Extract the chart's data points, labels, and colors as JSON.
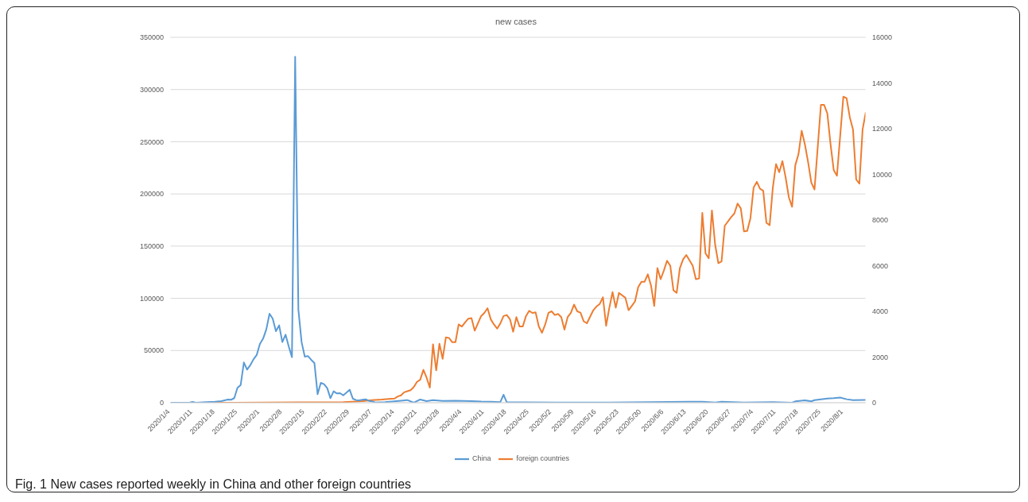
{
  "chart_data": {
    "type": "line",
    "title": "new cases",
    "annotations": [
      "Fig. 1 New cases reported weekly in China and other foreign countries"
    ],
    "xlim": [
      "2020-01-04",
      "2020-08-08"
    ],
    "xticks": [
      {
        "value": "2020-01-04",
        "label": "2020/1/4"
      },
      {
        "value": "2020-01-11",
        "label": "2020/1/11"
      },
      {
        "value": "2020-01-18",
        "label": "2020/1/18"
      },
      {
        "value": "2020-01-25",
        "label": "2020/1/25"
      },
      {
        "value": "2020-02-01",
        "label": "2020/2/1"
      },
      {
        "value": "2020-02-08",
        "label": "2020/2/8"
      },
      {
        "value": "2020-02-15",
        "label": "2020/2/15"
      },
      {
        "value": "2020-02-22",
        "label": "2020/2/22"
      },
      {
        "value": "2020-02-29",
        "label": "2020/2/29"
      },
      {
        "value": "2020-03-07",
        "label": "2020/3/7"
      },
      {
        "value": "2020-03-14",
        "label": "2020/3/14"
      },
      {
        "value": "2020-03-21",
        "label": "2020/3/21"
      },
      {
        "value": "2020-03-28",
        "label": "2020/3/28"
      },
      {
        "value": "2020-04-04",
        "label": "2020/4/4"
      },
      {
        "value": "2020-04-11",
        "label": "2020/4/11"
      },
      {
        "value": "2020-04-18",
        "label": "2020/4/18"
      },
      {
        "value": "2020-04-25",
        "label": "2020/4/25"
      },
      {
        "value": "2020-05-02",
        "label": "2020/5/2"
      },
      {
        "value": "2020-05-09",
        "label": "2020/5/9"
      },
      {
        "value": "2020-05-16",
        "label": "2020/5/16"
      },
      {
        "value": "2020-05-23",
        "label": "2020/5/23"
      },
      {
        "value": "2020-05-30",
        "label": "2020/5/30"
      },
      {
        "value": "2020-06-06",
        "label": "2020/6/6"
      },
      {
        "value": "2020-06-13",
        "label": "2020/6/13"
      },
      {
        "value": "2020-06-20",
        "label": "2020/6/20"
      },
      {
        "value": "2020-06-27",
        "label": "2020/6/27"
      },
      {
        "value": "2020-07-04",
        "label": "2020/7/4"
      },
      {
        "value": "2020-07-11",
        "label": "2020/7/11"
      },
      {
        "value": "2020-07-18",
        "label": "2020/7/18"
      },
      {
        "value": "2020-07-25",
        "label": "2020/7/25"
      },
      {
        "value": "2020-08-01",
        "label": "2020/8/1"
      }
    ],
    "ylim": [
      0,
      350000
    ],
    "yticks": [
      0,
      50000,
      100000,
      150000,
      200000,
      250000,
      300000,
      350000
    ],
    "y2lim": [
      0,
      16000
    ],
    "y2ticks": [
      0,
      2000,
      4000,
      6000,
      8000,
      10000,
      12000,
      14000,
      16000
    ],
    "grid": "y",
    "legend": "bottom",
    "marker": "none",
    "line_style": "solid",
    "series": [
      {
        "name": "foreign countries",
        "color": "#ed7d31",
        "x": [
          "2020-01-04",
          "2020-01-24",
          "2020-02-13",
          "2020-02-27",
          "2020-03-02",
          "2020-03-04",
          "2020-03-07",
          "2020-03-10",
          "2020-03-13",
          "2020-03-14",
          "2020-03-15",
          "2020-03-16",
          "2020-03-17",
          "2020-03-18",
          "2020-03-19",
          "2020-03-20",
          "2020-03-21",
          "2020-03-22",
          "2020-03-23",
          "2020-03-24",
          "2020-03-25",
          "2020-03-26",
          "2020-03-27",
          "2020-03-28",
          "2020-03-29",
          "2020-03-30",
          "2020-03-31",
          "2020-04-01",
          "2020-04-02",
          "2020-04-03",
          "2020-04-04",
          "2020-04-05",
          "2020-04-06",
          "2020-04-07",
          "2020-04-08",
          "2020-04-09",
          "2020-04-10",
          "2020-04-11",
          "2020-04-12",
          "2020-04-13",
          "2020-04-14",
          "2020-04-15",
          "2020-04-16",
          "2020-04-17",
          "2020-04-18",
          "2020-04-19",
          "2020-04-20",
          "2020-04-21",
          "2020-04-22",
          "2020-04-23",
          "2020-04-24",
          "2020-04-25",
          "2020-04-26",
          "2020-04-27",
          "2020-04-28",
          "2020-04-29",
          "2020-04-30",
          "2020-05-01",
          "2020-05-02",
          "2020-05-03",
          "2020-05-04",
          "2020-05-05",
          "2020-05-06",
          "2020-05-07",
          "2020-05-08",
          "2020-05-09",
          "2020-05-10",
          "2020-05-11",
          "2020-05-12",
          "2020-05-13",
          "2020-05-15",
          "2020-05-16",
          "2020-05-17",
          "2020-05-18",
          "2020-05-19",
          "2020-05-20",
          "2020-05-21",
          "2020-05-22",
          "2020-05-23",
          "2020-05-25",
          "2020-05-26",
          "2020-05-27",
          "2020-05-28",
          "2020-05-29",
          "2020-05-30",
          "2020-05-31",
          "2020-06-01",
          "2020-06-02",
          "2020-06-03",
          "2020-06-04",
          "2020-06-05",
          "2020-06-06",
          "2020-06-07",
          "2020-06-08",
          "2020-06-09",
          "2020-06-10",
          "2020-06-11",
          "2020-06-12",
          "2020-06-13",
          "2020-06-15",
          "2020-06-16",
          "2020-06-17",
          "2020-06-18",
          "2020-06-19",
          "2020-06-20",
          "2020-06-21",
          "2020-06-22",
          "2020-06-23",
          "2020-06-24",
          "2020-06-25",
          "2020-06-27",
          "2020-06-28",
          "2020-06-29",
          "2020-06-30",
          "2020-07-01",
          "2020-07-02",
          "2020-07-03",
          "2020-07-04",
          "2020-07-05",
          "2020-07-06",
          "2020-07-07",
          "2020-07-08",
          "2020-07-09",
          "2020-07-10",
          "2020-07-11",
          "2020-07-12",
          "2020-07-13",
          "2020-07-14",
          "2020-07-15",
          "2020-07-16",
          "2020-07-17",
          "2020-07-18",
          "2020-07-19",
          "2020-07-20",
          "2020-07-21",
          "2020-07-22",
          "2020-07-23",
          "2020-07-25",
          "2020-07-26",
          "2020-07-27",
          "2020-07-28",
          "2020-07-29",
          "2020-07-30",
          "2020-08-01",
          "2020-08-02",
          "2020-08-03",
          "2020-08-04",
          "2020-08-05",
          "2020-08-06",
          "2020-08-07",
          "2020-08-08"
        ],
        "values": [
          0,
          0,
          300,
          500,
          1200,
          1500,
          2500,
          3000,
          3800,
          4000,
          6000,
          7000,
          10000,
          11000,
          12000,
          15000,
          20000,
          22000,
          31500,
          24000,
          14500,
          56000,
          31000,
          56500,
          42000,
          62500,
          62000,
          58000,
          58000,
          75000,
          73000,
          77000,
          80500,
          81000,
          69000,
          76000,
          83000,
          86000,
          90500,
          80000,
          75000,
          71000,
          76000,
          83000,
          84000,
          80000,
          68000,
          82000,
          73000,
          73000,
          83000,
          88000,
          86000,
          86500,
          73000,
          67000,
          75000,
          86000,
          87500,
          84000,
          85000,
          82000,
          70000,
          82000,
          86000,
          94000,
          87500,
          86300,
          78000,
          76100,
          88600,
          92200,
          94600,
          101000,
          73700,
          91000,
          106000,
          91000,
          105200,
          100500,
          88600,
          92700,
          97000,
          110700,
          115900,
          115900,
          123000,
          112300,
          92700,
          128900,
          118300,
          126600,
          136000,
          131300,
          107600,
          105200,
          128900,
          137200,
          141500,
          131300,
          118300,
          119000,
          181800,
          143000,
          138400,
          184200,
          151400,
          133700,
          135300,
          169500,
          177800,
          181300,
          190800,
          186100,
          164100,
          164600,
          176600,
          206100,
          211600,
          205000,
          203100,
          172300,
          170000,
          206100,
          228600,
          220800,
          231400,
          215600,
          196700,
          187700,
          227400,
          238100,
          260500,
          247500,
          230500,
          210900,
          204300,
          285300,
          285300,
          277100,
          247500,
          222700,
          217500,
          293200,
          291700,
          273600,
          261800,
          213800,
          209800,
          261800,
          278300
        ]
      },
      {
        "name": "China",
        "color": "#5b9bd5",
        "axis": "y2",
        "x": [
          "2020-01-04",
          "2020-01-10",
          "2020-01-11",
          "2020-01-12",
          "2020-01-18",
          "2020-01-20",
          "2020-01-22",
          "2020-01-23",
          "2020-01-24",
          "2020-01-25",
          "2020-01-26",
          "2020-01-27",
          "2020-01-28",
          "2020-01-29",
          "2020-01-30",
          "2020-01-31",
          "2020-02-01",
          "2020-02-02",
          "2020-02-03",
          "2020-02-04",
          "2020-02-05",
          "2020-02-06",
          "2020-02-07",
          "2020-02-08",
          "2020-02-09",
          "2020-02-10",
          "2020-02-11",
          "2020-02-12",
          "2020-02-13",
          "2020-02-14",
          "2020-02-15",
          "2020-02-16",
          "2020-02-17",
          "2020-02-18",
          "2020-02-19",
          "2020-02-20",
          "2020-02-21",
          "2020-02-22",
          "2020-02-23",
          "2020-02-24",
          "2020-02-25",
          "2020-02-26",
          "2020-02-27",
          "2020-02-28",
          "2020-02-29",
          "2020-03-01",
          "2020-03-02",
          "2020-03-03",
          "2020-03-04",
          "2020-03-05",
          "2020-03-06",
          "2020-03-07",
          "2020-03-08",
          "2020-03-11",
          "2020-03-18",
          "2020-03-20",
          "2020-03-22",
          "2020-03-24",
          "2020-03-26",
          "2020-03-29",
          "2020-04-02",
          "2020-04-07",
          "2020-04-10",
          "2020-04-13",
          "2020-04-16",
          "2020-04-17",
          "2020-04-18",
          "2020-04-23",
          "2020-05-03",
          "2020-05-20",
          "2020-06-14",
          "2020-06-18",
          "2020-06-22",
          "2020-06-24",
          "2020-07-01",
          "2020-07-10",
          "2020-07-16",
          "2020-07-17",
          "2020-07-20",
          "2020-07-22",
          "2020-07-23",
          "2020-07-27",
          "2020-07-29",
          "2020-07-31",
          "2020-08-02",
          "2020-08-04",
          "2020-08-08"
        ],
        "values": [
          0,
          0,
          35,
          0,
          45,
          70,
          140,
          130,
          200,
          650,
          777,
          1763,
          1450,
          1647,
          1900,
          2088,
          2575,
          2807,
          3213,
          3898,
          3677,
          3132,
          3387,
          2656,
          2981,
          2459,
          1995,
          15152,
          4083,
          2656,
          2018,
          2042,
          1880,
          1740,
          371,
          870,
          812,
          638,
          197,
          499,
          406,
          418,
          325,
          441,
          568,
          174,
          116,
          104,
          128,
          151,
          81,
          58,
          12,
          25,
          116,
          0,
          140,
          70,
          116,
          80,
          90,
          70,
          50,
          40,
          30,
          348,
          25,
          20,
          5,
          10,
          45,
          45,
          10,
          40,
          10,
          30,
          0,
          57,
          105,
          60,
          114,
          180,
          200,
          228,
          152,
          110,
          125
        ]
      }
    ]
  }
}
